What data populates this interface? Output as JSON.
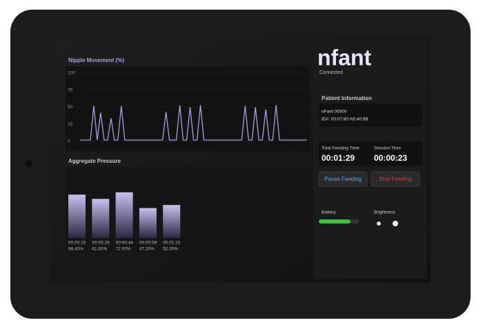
{
  "app": {
    "logo": "nfant",
    "status": "Connected"
  },
  "nipple_movement": {
    "title": "Nipple Movement (%)",
    "ylim": [
      0,
      100
    ],
    "yticks": [
      0,
      25,
      50,
      75,
      100
    ],
    "color": "#a9a0e0",
    "values": [
      2,
      2,
      2,
      2,
      52,
      2,
      42,
      2,
      2,
      34,
      2,
      2,
      52,
      2,
      2,
      2,
      2,
      2,
      2,
      2,
      2,
      2,
      2,
      2,
      2,
      43,
      2,
      2,
      2,
      53,
      2,
      2,
      50,
      2,
      2,
      53,
      2,
      2,
      2,
      2,
      2,
      2,
      2,
      2,
      2,
      2,
      2,
      2,
      52,
      2,
      2,
      50,
      2,
      2,
      47,
      2,
      2,
      53,
      2,
      2,
      2,
      2,
      2,
      2,
      2,
      2,
      2
    ]
  },
  "aggregate_pressure": {
    "title": "Aggregate Pressure",
    "categories": [
      "00:00:15",
      "00:00:29",
      "00:00:44",
      "00:00:59",
      "00:01:15"
    ],
    "values": [
      68.4,
      61.6,
      72,
      47.2,
      52
    ],
    "value_labels": [
      "68.40%",
      "61.60%",
      "72.00%",
      "47.20%",
      "52.00%"
    ]
  },
  "patient": {
    "title": "Patient Information",
    "name": "nFant 00000",
    "id": "ID#: 00:07:80:A5:40:9B"
  },
  "timers": {
    "total_label": "Total Feeding Time",
    "total_value": "00:01:29",
    "session_label": "Session Time",
    "session_value": "00:00:23"
  },
  "buttons": {
    "pause": "Pause Feeding",
    "stop": "Stop Feeding"
  },
  "status": {
    "battery": "Battery",
    "brightness": "Brightness"
  }
}
